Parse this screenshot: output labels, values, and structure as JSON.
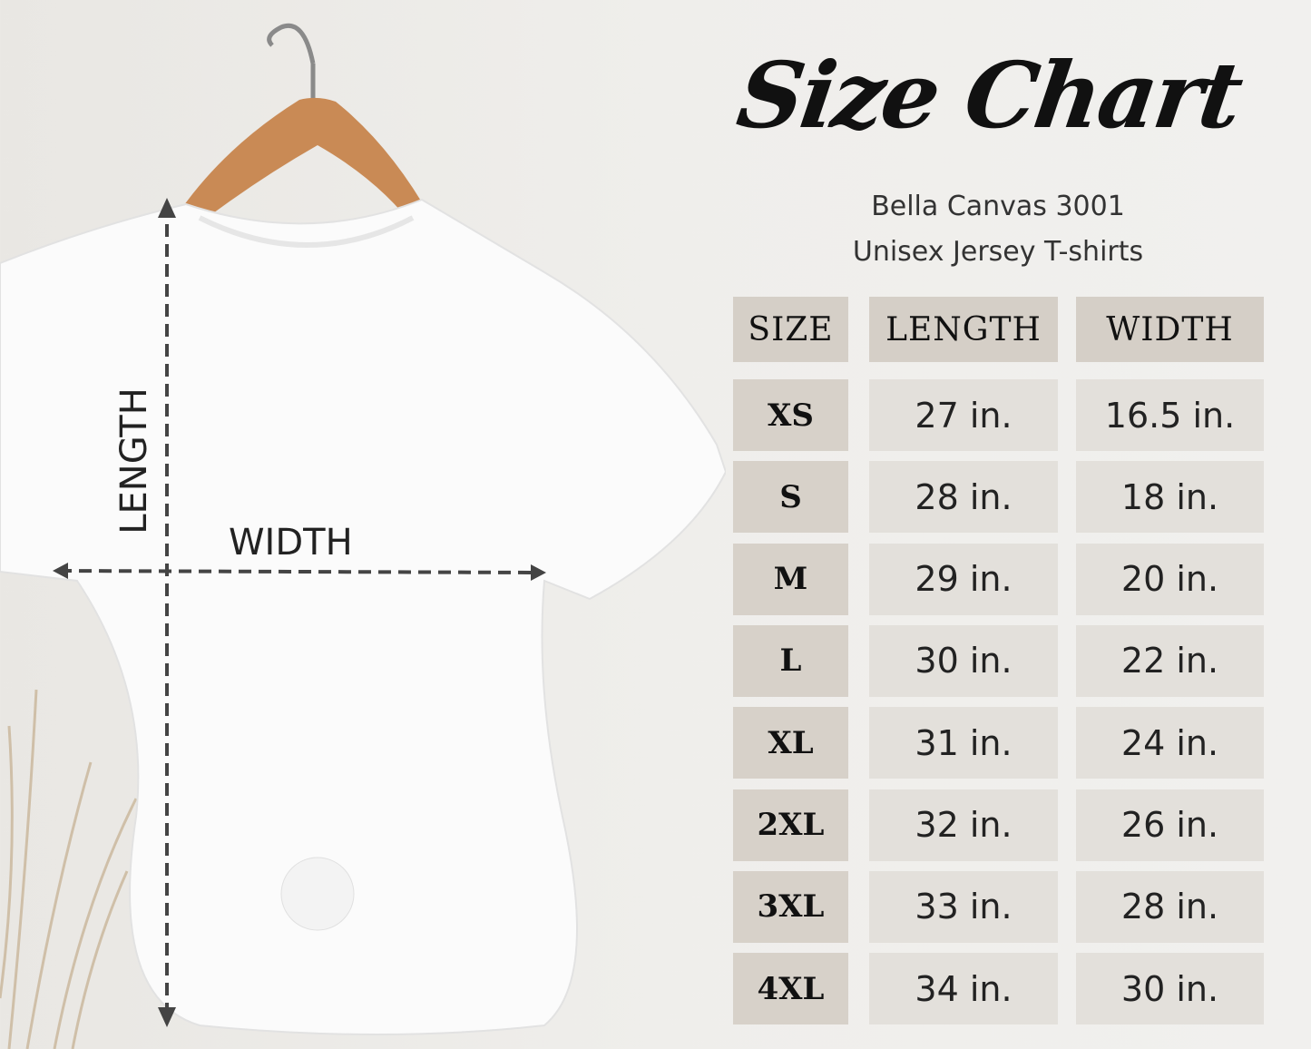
{
  "title": "Size Chart",
  "subtitle_line1": "Bella Canvas 3001",
  "subtitle_line2": "Unisex Jersey T-shirts",
  "diagram": {
    "length_label": "LENGTH",
    "width_label": "WIDTH"
  },
  "table": {
    "headers": [
      "SIZE",
      "LENGTH",
      "WIDTH"
    ],
    "rows": [
      {
        "size": "XS",
        "length": "27 in.",
        "width": "16.5 in."
      },
      {
        "size": "S",
        "length": "28 in.",
        "width": "18 in."
      },
      {
        "size": "M",
        "length": "29 in.",
        "width": "20 in."
      },
      {
        "size": "L",
        "length": "30 in.",
        "width": "22 in."
      },
      {
        "size": "XL",
        "length": "31 in.",
        "width": "24 in."
      },
      {
        "size": "2XL",
        "length": "32 in.",
        "width": "26 in."
      },
      {
        "size": "3XL",
        "length": "33 in.",
        "width": "28 in."
      },
      {
        "size": "4XL",
        "length": "34 in.",
        "width": "30 in."
      }
    ]
  },
  "colors": {
    "header_cell": "#d5cfc7",
    "value_cell": "#e3e0db",
    "background": "#efeeeb"
  }
}
